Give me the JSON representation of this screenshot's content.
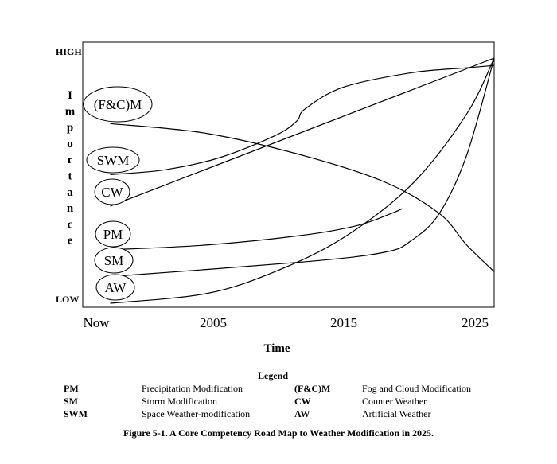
{
  "chart_data": {
    "type": "line",
    "title": "A Core Competency Road Map to Weather Modification in 2025.",
    "ylabel": "Importance",
    "y_levels": {
      "high": "HIGH",
      "low": "LOW"
    },
    "xlabel": "Time",
    "x_ticks": [
      "Now",
      "2005",
      "2015",
      "2025"
    ],
    "xlim": [
      1996,
      2026
    ],
    "ylim": [
      0,
      10
    ],
    "series": [
      {
        "name": "(F&C)M",
        "x": [
          1998,
          2005,
          2012,
          2018,
          2022,
          2024,
          2026
        ],
        "y": [
          7.3,
          6.9,
          6.0,
          4.9,
          3.6,
          2.3,
          1.2
        ]
      },
      {
        "name": "SWM",
        "x": [
          1998,
          2002,
          2006,
          2010,
          2011.6,
          2012.2,
          2015,
          2020,
          2024,
          2026
        ],
        "y": [
          5.2,
          5.4,
          5.9,
          6.8,
          7.4,
          7.9,
          8.8,
          9.4,
          9.6,
          9.7
        ]
      },
      {
        "name": "CW",
        "x": [
          1998,
          2026
        ],
        "y": [
          3.9,
          10.0
        ]
      },
      {
        "name": "PM",
        "x": [
          1998,
          2005,
          2012,
          2016,
          2018.5,
          2019.3
        ],
        "y": [
          2.1,
          2.3,
          2.7,
          3.1,
          3.6,
          3.8
        ]
      },
      {
        "name": "SM",
        "x": [
          1998,
          2012,
          2018,
          2020,
          2022,
          2024,
          2026
        ],
        "y": [
          1.0,
          1.6,
          2.0,
          2.5,
          3.6,
          6.0,
          10.0
        ]
      },
      {
        "name": "AW",
        "x": [
          1998,
          2005,
          2010,
          2015,
          2020,
          2024,
          2026
        ],
        "y": [
          -0.1,
          0.3,
          1.2,
          2.6,
          4.8,
          7.7,
          10.0
        ]
      }
    ],
    "series_labels": [
      "(F&C)M",
      "SWM",
      "CW",
      "PM",
      "SM",
      "AW"
    ]
  },
  "legend": {
    "title": "Legend",
    "items": [
      {
        "abbr": "PM",
        "name": "Precipitation Modification"
      },
      {
        "abbr": "SM",
        "name": "Storm Modification"
      },
      {
        "abbr": "SWM",
        "name": "Space Weather-modification"
      },
      {
        "abbr": "(F&C)M",
        "name": "Fog and Cloud Modification"
      },
      {
        "abbr": "CW",
        "name": "Counter Weather"
      },
      {
        "abbr": "AW",
        "name": "Artificial Weather"
      }
    ]
  },
  "caption": "Figure 5-1.  A Core Competency Road Map to Weather Modification in 2025."
}
